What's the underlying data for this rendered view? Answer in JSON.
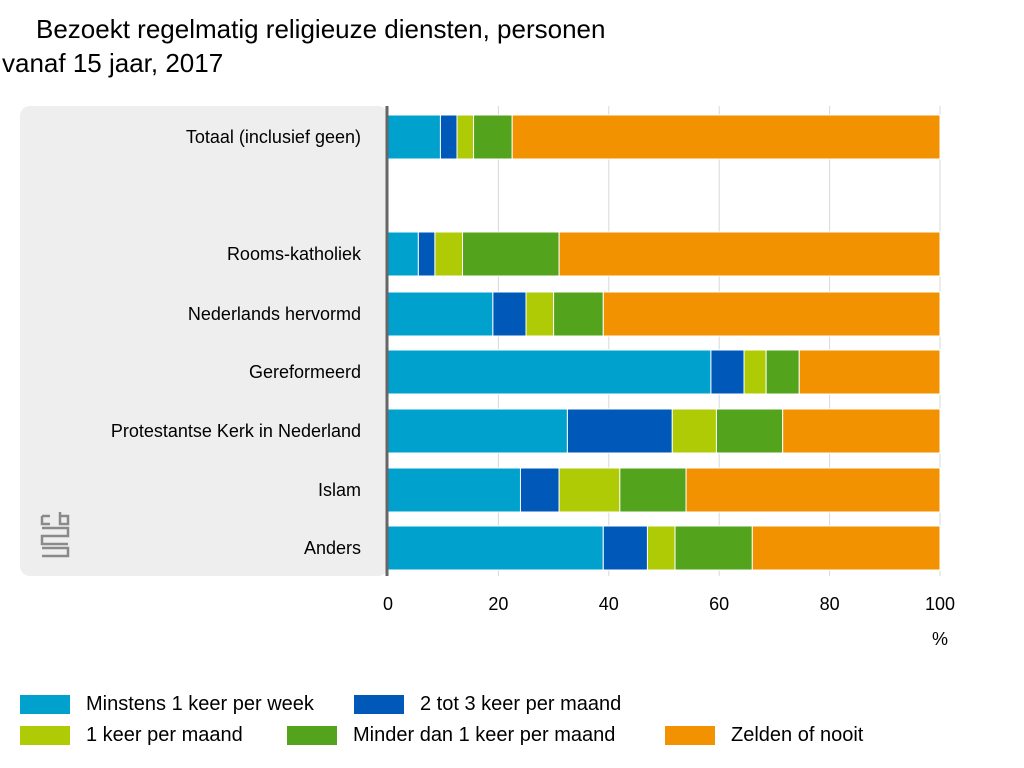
{
  "title_line1": "Bezoekt regelmatig religieuze diensten, personen",
  "title_line2": "vanaf 15 jaar, 2017",
  "logo_icon": "cbs-logo-icon",
  "chart_data": {
    "type": "bar",
    "orientation": "horizontal",
    "stacked": true,
    "categories": [
      "Totaal (inclusief geen)",
      "Rooms-katholiek",
      "Nederlands hervormd",
      "Gereformeerd",
      "Protestantse Kerk in Nederland",
      "Islam",
      "Anders"
    ],
    "series": [
      {
        "name": "Minstens 1 keer per week",
        "color": "#00a1cd",
        "values": [
          9.5,
          5.5,
          19,
          58.5,
          32.5,
          24,
          39
        ]
      },
      {
        "name": "2 tot 3 keer per maand",
        "color": "#0058b8",
        "values": [
          3,
          3,
          6,
          6,
          19,
          7,
          8
        ]
      },
      {
        "name": "1 keer per maand",
        "color": "#afcb05",
        "values": [
          3,
          5,
          5,
          4,
          8,
          11,
          5
        ]
      },
      {
        "name": "Minder dan 1 keer per maand",
        "color": "#53a31d",
        "values": [
          7,
          17.5,
          9,
          6,
          12,
          12,
          14
        ]
      },
      {
        "name": "Zelden of nooit",
        "color": "#f39200",
        "values": [
          77.5,
          69,
          61,
          25.5,
          28.5,
          46,
          34
        ]
      }
    ],
    "xlim": [
      0,
      100
    ],
    "xticks": [
      0,
      20,
      40,
      60,
      80,
      100
    ],
    "xlabel": "%",
    "grid": true,
    "legend_position": "bottom"
  }
}
